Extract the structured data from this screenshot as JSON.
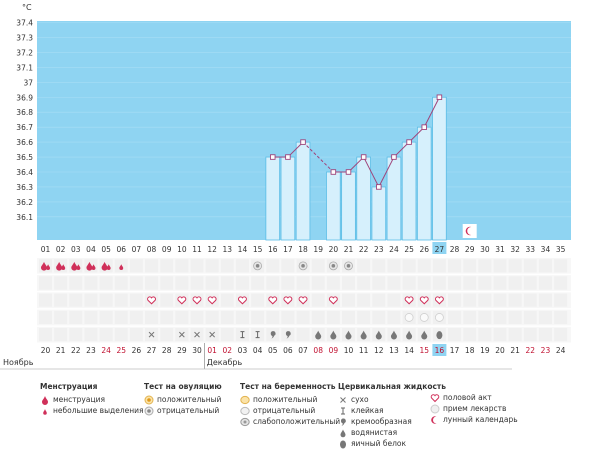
{
  "chart_data": {
    "type": "bar",
    "unit": "°C",
    "ylim": [
      36.1,
      37.45
    ],
    "yticks": [
      "37.4",
      "37.3",
      "37.2",
      "37.1",
      "37",
      "36.9",
      "36.8",
      "36.7",
      "36.6",
      "36.5",
      "36.4",
      "36.3",
      "36.2",
      "36.1"
    ],
    "cycle_days": [
      "01",
      "02",
      "03",
      "04",
      "05",
      "06",
      "07",
      "08",
      "09",
      "10",
      "11",
      "12",
      "13",
      "14",
      "15",
      "16",
      "17",
      "18",
      "19",
      "20",
      "21",
      "22",
      "23",
      "24",
      "25",
      "26",
      "27",
      "28",
      "29",
      "30",
      "31",
      "32",
      "33",
      "34",
      "35"
    ],
    "dates": [
      "20",
      "21",
      "22",
      "23",
      "24",
      "25",
      "26",
      "27",
      "28",
      "29",
      "30",
      "01",
      "02",
      "03",
      "04",
      "05",
      "06",
      "07",
      "08",
      "09",
      "10",
      "11",
      "12",
      "13",
      "14",
      "15",
      "16",
      "17",
      "18",
      "19",
      "20",
      "21",
      "22",
      "23",
      "24"
    ],
    "weekend_dates_idx": [
      4,
      5,
      11,
      12,
      18,
      19,
      25,
      26,
      32,
      33
    ],
    "month_labels": [
      {
        "label": "Ноябрь",
        "day_index": 0
      },
      {
        "label": "Декабрь",
        "day_index": 11
      }
    ],
    "highlight_day": "27",
    "temperatures": [
      {
        "day": "16",
        "value": 36.5
      },
      {
        "day": "17",
        "value": 36.5
      },
      {
        "day": "18",
        "value": 36.6
      },
      {
        "day": "20",
        "value": 36.4
      },
      {
        "day": "21",
        "value": 36.4
      },
      {
        "day": "22",
        "value": 36.5
      },
      {
        "day": "23",
        "value": 36.3
      },
      {
        "day": "24",
        "value": 36.5
      },
      {
        "day": "25",
        "value": 36.6
      },
      {
        "day": "26",
        "value": 36.7
      },
      {
        "day": "27",
        "value": 36.9
      }
    ],
    "dashed_gap": [
      "18",
      "20"
    ],
    "lunar_day": "29",
    "rows": {
      "menstruation": {
        "heavy": [
          "01",
          "02",
          "03",
          "04",
          "05"
        ],
        "light": [
          "06"
        ]
      },
      "ovulation_test": {
        "negative": [
          "15",
          "18",
          "20",
          "21"
        ]
      },
      "sex": [
        "08",
        "10",
        "11",
        "12",
        "14",
        "16",
        "17",
        "18",
        "20",
        "25",
        "26",
        "27"
      ],
      "pill": [
        "25",
        "26",
        "27"
      ],
      "cervical": {
        "dry": [
          "08",
          "10",
          "11",
          "12"
        ],
        "sticky": [
          "14",
          "15"
        ],
        "creamy": [
          "16",
          "17"
        ],
        "watery": [
          "19",
          "20",
          "21",
          "22",
          "23",
          "24",
          "25",
          "26"
        ],
        "egg_white": [
          "27"
        ]
      }
    }
  },
  "legend": {
    "menstruation": {
      "title": "Менструация",
      "items": [
        "менструация",
        "небольшие выделения"
      ]
    },
    "ovulation": {
      "title": "Тест на овуляцию",
      "items": [
        "положительный",
        "отрицательный"
      ]
    },
    "pregnancy": {
      "title": "Тест на беременность",
      "items": [
        "положительный",
        "отрицательный",
        "слабоположительный"
      ]
    },
    "cervical": {
      "title": "Цервикальная жидкость",
      "items": [
        "сухо",
        "клейкая",
        "кремообразная",
        "водянистая",
        "яичный белок"
      ]
    },
    "other": {
      "items": [
        "половой акт",
        "прием лекарств",
        "лунный календарь"
      ]
    }
  },
  "colors": {
    "plot_bg": "#8fd4f2",
    "bar_fill": "#d6f0fc",
    "bar_stroke": "#5bbde6",
    "line": "#a0447a",
    "highlight": "#8fd4f2",
    "weekend": "#c01030",
    "heart": "#d0305a"
  }
}
